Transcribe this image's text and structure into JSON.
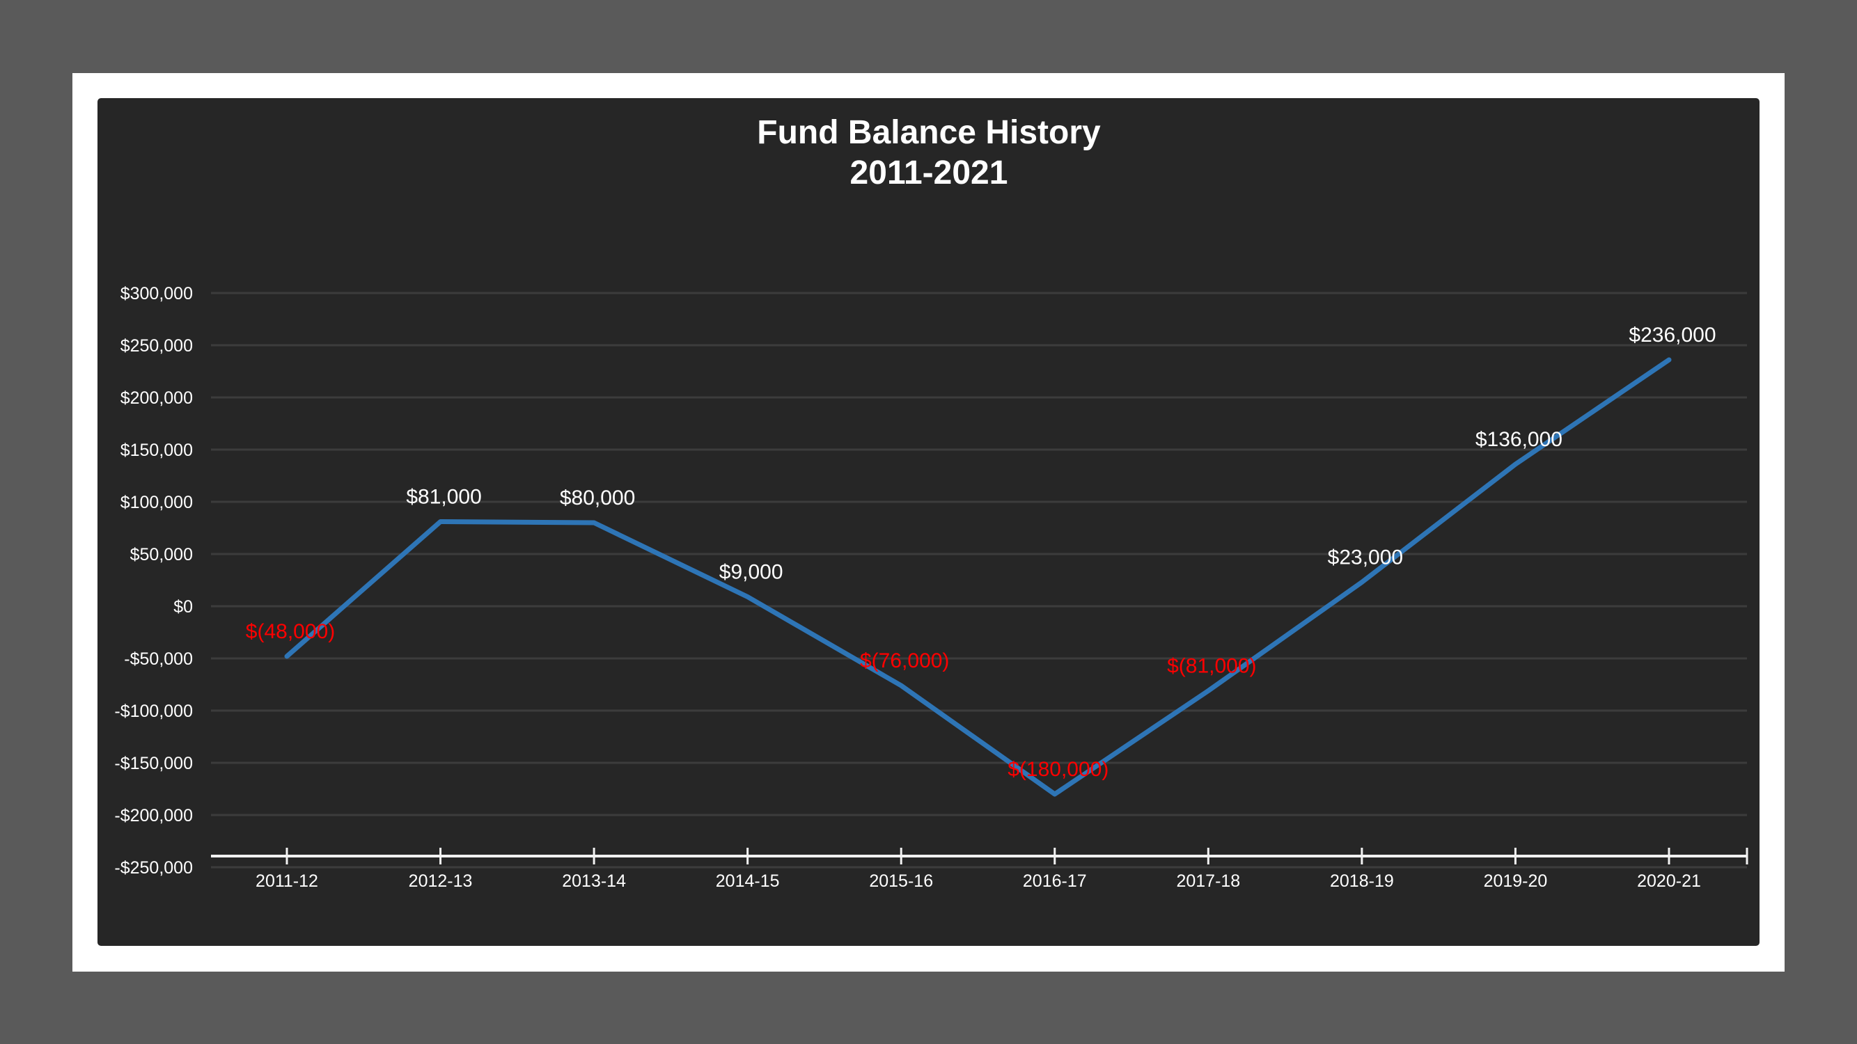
{
  "chart_data": {
    "type": "line",
    "title": "Fund Balance History",
    "subtitle": "2011-2021",
    "xlabel": "",
    "ylabel": "",
    "categories": [
      "2011-12",
      "2012-13",
      "2013-14",
      "2014-15",
      "2015-16",
      "2016-17",
      "2017-18",
      "2018-19",
      "2019-20",
      "2020-21"
    ],
    "series": [
      {
        "name": "Fund Balance",
        "values": [
          -48000,
          81000,
          80000,
          9000,
          -76000,
          -180000,
          -81000,
          23000,
          136000,
          236000
        ],
        "color": "#2e75b6"
      }
    ],
    "data_labels": [
      "$(48,000)",
      "$81,000",
      "$80,000",
      "$9,000",
      "$(76,000)",
      "$(180,000)",
      "$(81,000)",
      "$23,000",
      "$136,000",
      "$236,000"
    ],
    "ylim": [
      -250000,
      300000
    ],
    "yticks": [
      300000,
      250000,
      200000,
      150000,
      100000,
      50000,
      0,
      -50000,
      -100000,
      -150000,
      -200000,
      -250000
    ],
    "ytick_labels": [
      "$300,000",
      "$250,000",
      "$200,000",
      "$150,000",
      "$100,000",
      "$50,000",
      "$0",
      "-$50,000",
      "-$100,000",
      "-$150,000",
      "-$200,000",
      "-$250,000"
    ],
    "grid": true,
    "legend": "none",
    "colors": {
      "positive_label": "#ffffff",
      "negative_label": "#ff0000",
      "background": "#262626",
      "grid": "#3c3c3c",
      "axis": "#f2f2f2"
    }
  }
}
